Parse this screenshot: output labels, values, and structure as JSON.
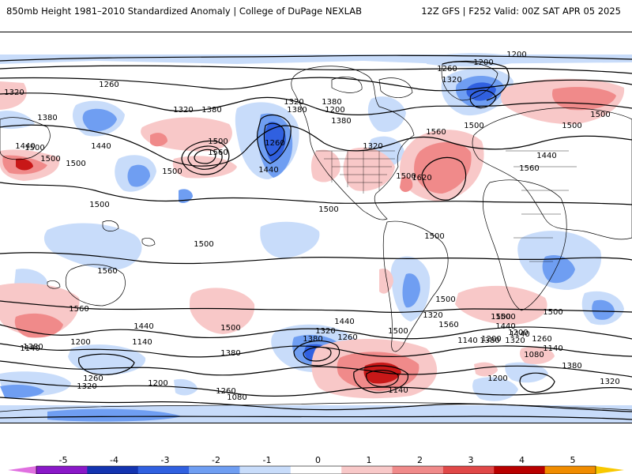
{
  "header": {
    "title_left": "850mb Height 1981–2010 Standardized Anomaly | College of DuPage NEXLAB",
    "title_right": "12Z GFS | F252 Valid: 00Z SAT APR 05 2025"
  },
  "legend": {
    "tick_labels": [
      "-5",
      "-4",
      "-3",
      "-2",
      "-1",
      "0",
      "1",
      "2",
      "3",
      "4",
      "5"
    ],
    "colors": [
      "#e070e0",
      "#8a18c8",
      "#1434b0",
      "#3060e0",
      "#6f9ef2",
      "#c8dcfa",
      "#ffffff",
      "#f8c8c8",
      "#f08a8a",
      "#e04848",
      "#b80000",
      "#f08c00",
      "#f8c800"
    ]
  },
  "anomaly_colors": {
    "pos1": "#f8c8c8",
    "pos2": "#f08a8a",
    "pos3": "#c81818",
    "neg1": "#c8dcfa",
    "neg2": "#6f9ef2",
    "neg3": "#3060e0",
    "neg4": "#1434b0"
  },
  "contour_labels": [
    {
      "text": "1200"
    },
    {
      "text": "1200"
    },
    {
      "text": "1260"
    },
    {
      "text": "1320"
    },
    {
      "text": "1260"
    },
    {
      "text": "1320"
    },
    {
      "text": "1320"
    },
    {
      "text": "1380"
    },
    {
      "text": "1320"
    },
    {
      "text": "1380"
    },
    {
      "text": "1380"
    },
    {
      "text": "1200"
    },
    {
      "text": "1380"
    },
    {
      "text": "1500"
    },
    {
      "text": "1500"
    },
    {
      "text": "1380"
    },
    {
      "text": "1560"
    },
    {
      "text": "1500"
    },
    {
      "text": "1500"
    },
    {
      "text": "1500"
    },
    {
      "text": "1440"
    },
    {
      "text": "1260"
    },
    {
      "text": "1440"
    },
    {
      "text": "1320"
    },
    {
      "text": "1560"
    },
    {
      "text": "1440"
    },
    {
      "text": "1620"
    },
    {
      "text": "1440"
    },
    {
      "text": "1500"
    },
    {
      "text": "1560"
    },
    {
      "text": "1500"
    },
    {
      "text": "1500"
    },
    {
      "text": "1500"
    },
    {
      "text": "1500"
    },
    {
      "text": "1500"
    },
    {
      "text": "1500"
    },
    {
      "text": "1500"
    },
    {
      "text": "1560"
    },
    {
      "text": "1560"
    },
    {
      "text": "1500"
    },
    {
      "text": "1440"
    },
    {
      "text": "1500"
    },
    {
      "text": "1560"
    },
    {
      "text": "1500"
    },
    {
      "text": "1440"
    },
    {
      "text": "1320"
    },
    {
      "text": "1260"
    },
    {
      "text": "1500"
    },
    {
      "text": "1380"
    },
    {
      "text": "1200"
    },
    {
      "text": "1320"
    },
    {
      "text": "1140"
    },
    {
      "text": "1380"
    },
    {
      "text": "1140"
    },
    {
      "text": "1140"
    },
    {
      "text": "1200"
    },
    {
      "text": "1260"
    },
    {
      "text": "1380"
    },
    {
      "text": "1080"
    },
    {
      "text": "1140"
    },
    {
      "text": "1140"
    },
    {
      "text": "1200"
    },
    {
      "text": "1380"
    },
    {
      "text": "1320"
    },
    {
      "text": "1500"
    },
    {
      "text": "1500"
    },
    {
      "text": "1440"
    },
    {
      "text": "1380"
    },
    {
      "text": "1320"
    },
    {
      "text": "1260"
    },
    {
      "text": "1200"
    },
    {
      "text": "1260"
    },
    {
      "text": "1080"
    },
    {
      "text": "1140"
    },
    {
      "text": "1200"
    },
    {
      "text": "1320"
    },
    {
      "text": "1260"
    }
  ]
}
